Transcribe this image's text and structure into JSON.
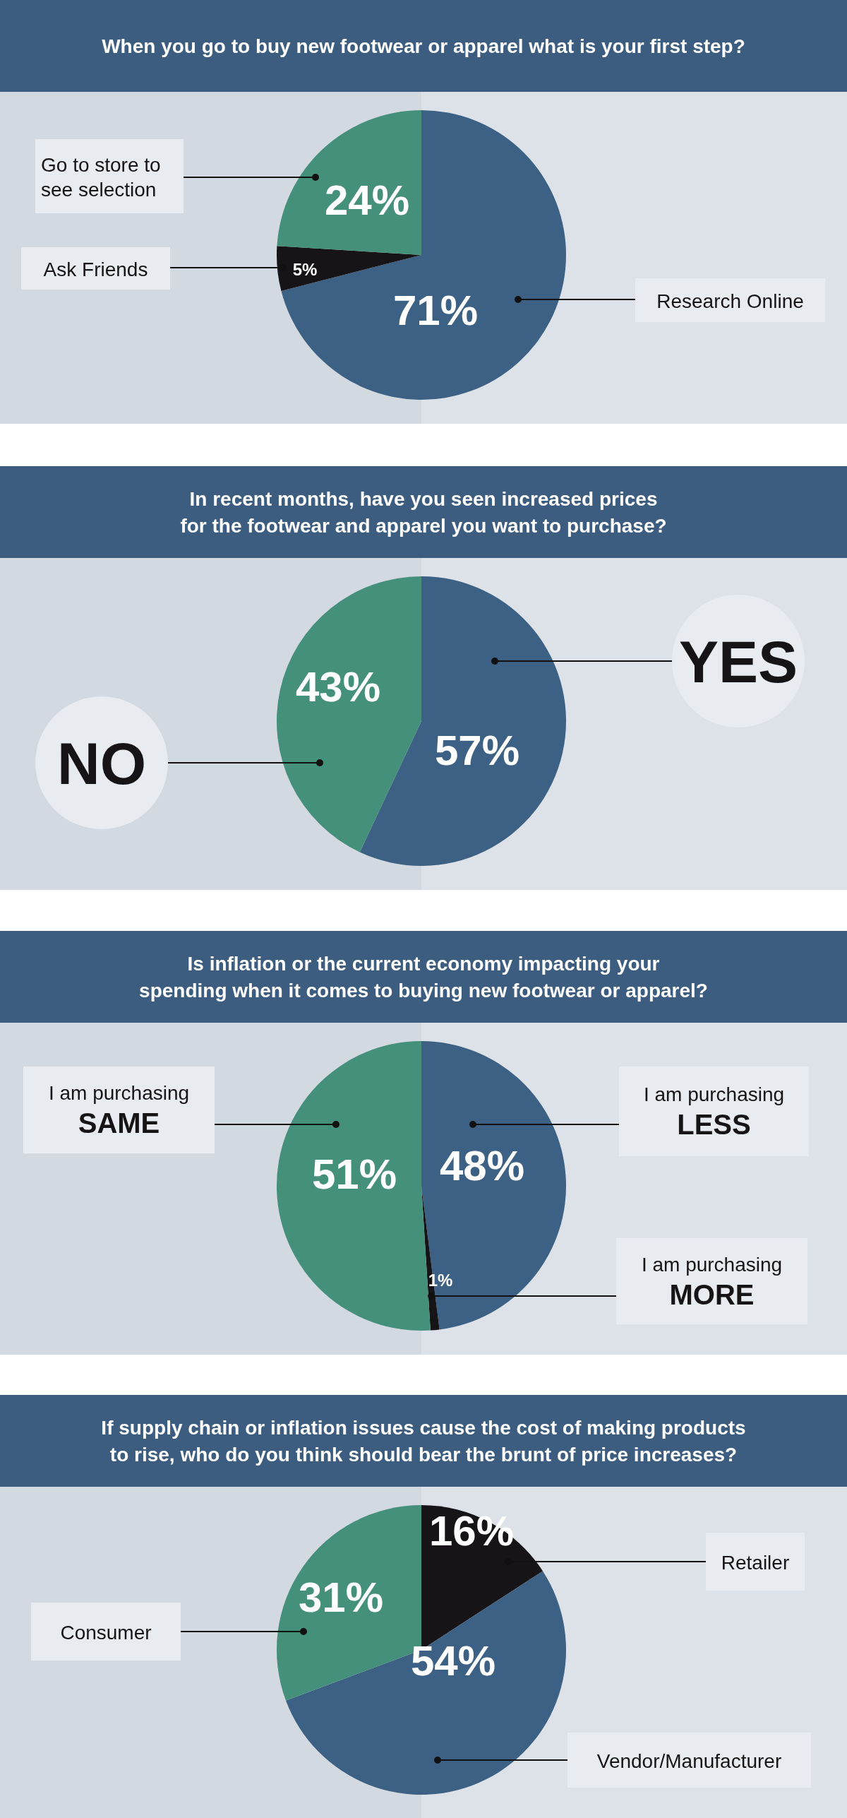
{
  "chart_data": [
    {
      "type": "pie",
      "title": "When you go to buy new footwear or apparel what is your first step?",
      "categories": [
        "Research Online",
        "Ask Friends",
        "Go to store to see selection"
      ],
      "values": [
        71,
        5,
        24
      ],
      "colors": [
        "#3d6184",
        "#161416",
        "#45907a"
      ],
      "value_labels": [
        "71%",
        "5%",
        "24%"
      ]
    },
    {
      "type": "pie",
      "title": "In recent months, have you seen increased prices for the footwear and apparel you want to purchase?",
      "categories": [
        "YES",
        "NO"
      ],
      "values": [
        57,
        43
      ],
      "colors": [
        "#3d6184",
        "#45907a"
      ],
      "value_labels": [
        "57%",
        "43%"
      ]
    },
    {
      "type": "pie",
      "title": "Is inflation or the current economy impacting your spending when it comes to buying new footwear or apparel?",
      "categories": [
        "I am purchasing LESS",
        "I am purchasing MORE",
        "I am purchasing SAME"
      ],
      "values": [
        48,
        1,
        51
      ],
      "colors": [
        "#3d6184",
        "#161416",
        "#45907a"
      ],
      "value_labels": [
        "48%",
        "1%",
        "51%"
      ]
    },
    {
      "type": "pie",
      "title": "If supply chain or inflation issues cause the cost of making products to rise, who do you think should bear the brunt of price increases?",
      "categories": [
        "Retailer",
        "Vendor/Manufacturer",
        "Consumer"
      ],
      "values": [
        16,
        54,
        31
      ],
      "colors": [
        "#161416",
        "#3d6184",
        "#45907a"
      ],
      "value_labels": [
        "16%",
        "54%",
        "31%"
      ]
    }
  ]
}
